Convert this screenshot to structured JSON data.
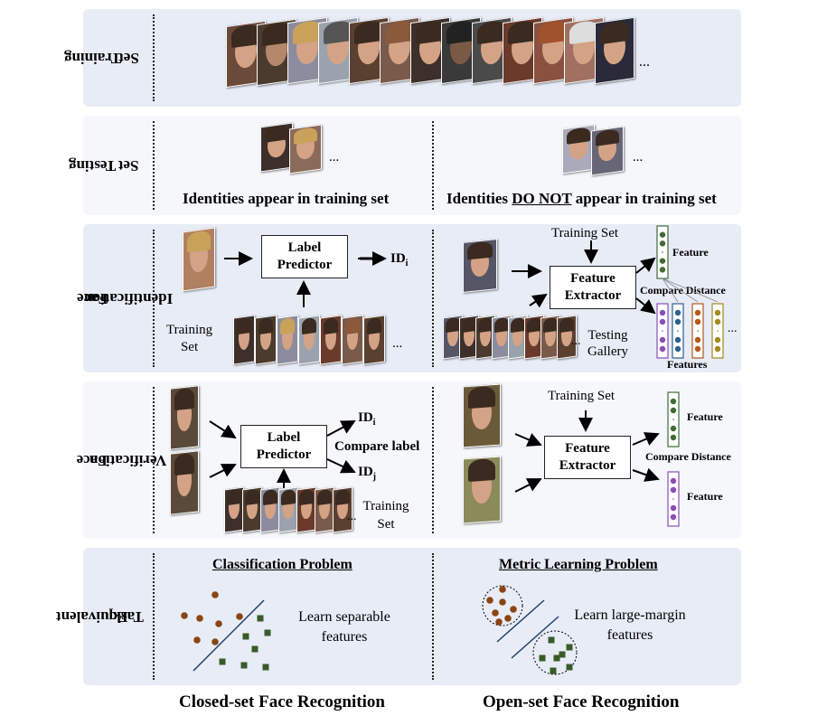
{
  "rows": {
    "training": {
      "label_line1": "Training",
      "label_line2": "Set",
      "ellipsis": "..."
    },
    "testing": {
      "label_line1": "Testing",
      "label_line2": "Set",
      "left_caption": "Identities appear in training set",
      "right_caption_pre": "Identities ",
      "right_caption_emph": "DO NOT",
      "right_caption_post": " appear in training set",
      "ellipsis": "..."
    },
    "identification": {
      "label_line1": "Face",
      "label_line2": "Identification",
      "label_predictor_line1": "Label",
      "label_predictor_line2": "Predictor",
      "output_id": "ID",
      "output_sub": "i",
      "training_set_line1": "Training",
      "training_set_line2": "Set",
      "right_training_set": "Training Set",
      "feature_extractor_line1": "Feature",
      "feature_extractor_line2": "Extractor",
      "feature_label": "Feature",
      "compare_distance": "Compare Distance",
      "features_label": "Features",
      "testing_gallery_line1": "Testing",
      "testing_gallery_line2": "Gallery",
      "ellipsis": "..."
    },
    "verification": {
      "label_line1": "Face",
      "label_line2": "Verification",
      "label_predictor_line1": "Label",
      "label_predictor_line2": "Predictor",
      "id_i": "ID",
      "id_i_sub": "i",
      "id_j": "ID",
      "id_j_sub": "j",
      "compare_label": "Compare label",
      "training_set_line1": "Training",
      "training_set_line2": "Set",
      "right_training_set": "Training Set",
      "feature_extractor_line1": "Feature",
      "feature_extractor_line2": "Extractor",
      "feature_top": "Feature",
      "compare_distance": "Compare Distance",
      "feature_bottom": "Feature",
      "ellipsis": "..."
    },
    "equivalent": {
      "label_line1": "Equivalent",
      "label_line2": "Task",
      "left_title": "Classification Problem",
      "left_text_line1": "Learn separable",
      "left_text_line2": "features",
      "right_title": "Metric Learning Problem",
      "right_text_line1": "Learn large-margin",
      "right_text_line2": "features"
    }
  },
  "footer": {
    "left": "Closed-set Face Recognition",
    "right": "Open-set Face Recognition"
  },
  "colors": {
    "green": "#3f6b35",
    "purple": "#8a4db5",
    "blue": "#2c5f8e",
    "orange": "#b5581c",
    "olive": "#a08a1e",
    "brown": "#8b4513",
    "dark_green": "#3a5a2a"
  }
}
